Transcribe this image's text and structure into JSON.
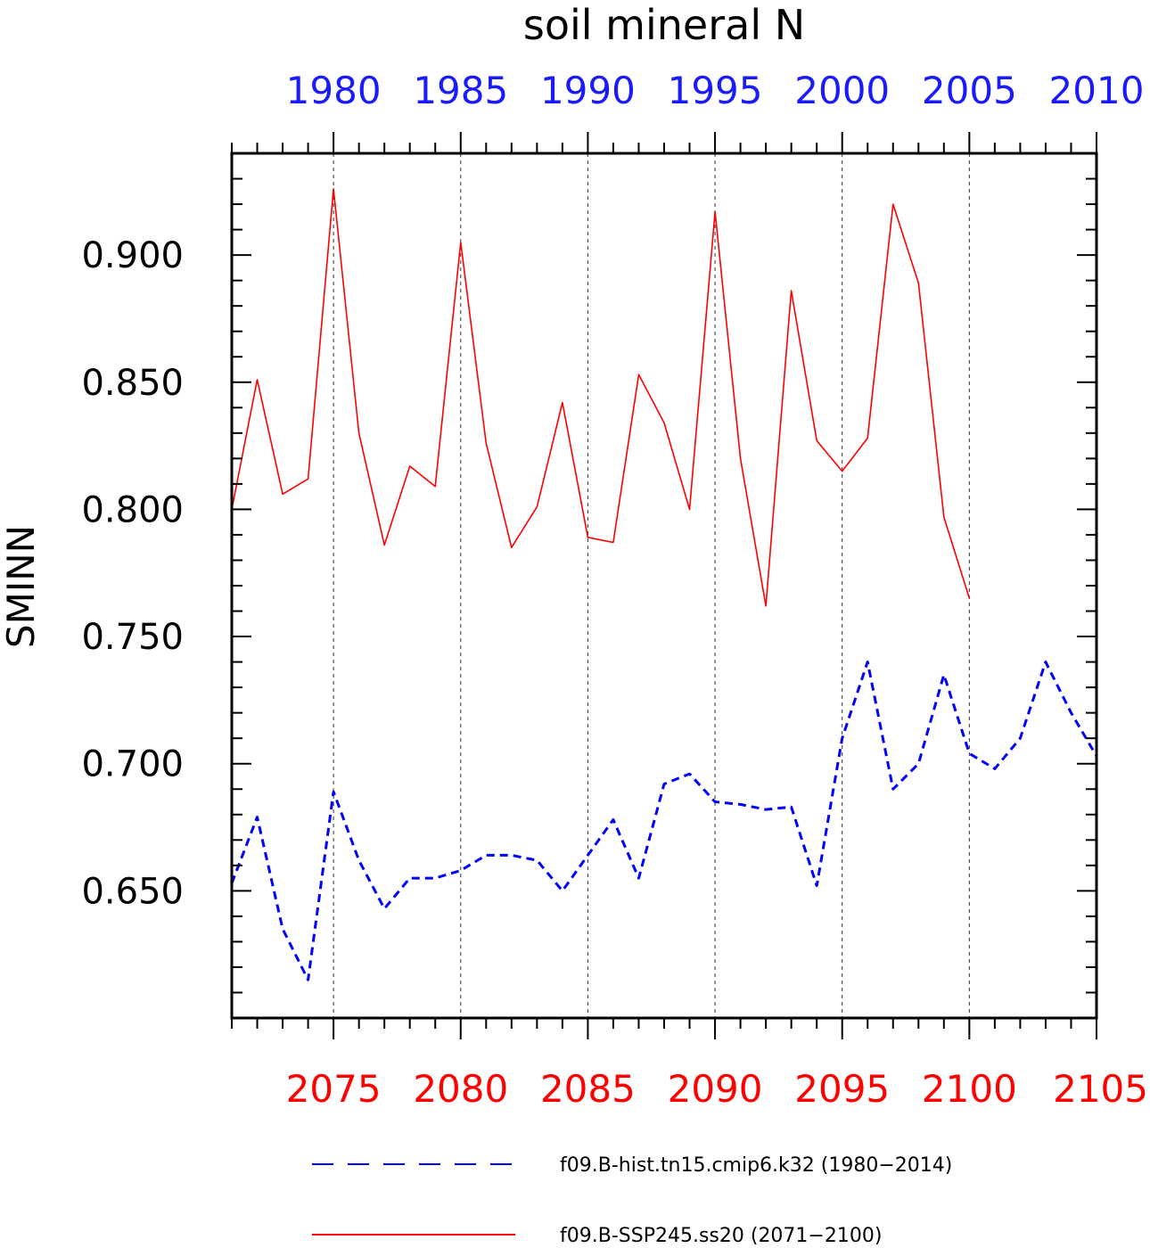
{
  "chart_data": {
    "type": "line",
    "title": "soil mineral N",
    "ylabel": "SMINN",
    "ylim": [
      0.6,
      0.94
    ],
    "y_ticks": [
      "0.650",
      "0.700",
      "0.750",
      "0.800",
      "0.850",
      "0.900"
    ],
    "y_tick_values": [
      0.65,
      0.7,
      0.75,
      0.8,
      0.85,
      0.9
    ],
    "top_axis": {
      "color": "#1a1aff",
      "range": [
        1976,
        2010
      ],
      "tick_labels": [
        "1980",
        "1985",
        "1990",
        "1995",
        "2000",
        "2005",
        "2010"
      ],
      "tick_values": [
        1980,
        1985,
        1990,
        1995,
        2000,
        2005,
        2010
      ]
    },
    "bottom_axis": {
      "color": "#ff0000",
      "range": [
        2071,
        2105
      ],
      "tick_labels": [
        "2075",
        "2080",
        "2085",
        "2090",
        "2095",
        "2100",
        "2105"
      ],
      "tick_values": [
        2075,
        2080,
        2085,
        2090,
        2095,
        2100,
        2105
      ]
    },
    "grid": "dashed vertical lines at labeled years",
    "series": [
      {
        "name": "f09.B-hist.tn15.cmip6.k32 (1980−2014)",
        "color": "#0000ff",
        "style": "dashed",
        "axis": "top",
        "x": [
          1976,
          1977,
          1978,
          1979,
          1980,
          1981,
          1982,
          1983,
          1984,
          1985,
          1986,
          1987,
          1988,
          1989,
          1990,
          1991,
          1992,
          1993,
          1994,
          1995,
          1996,
          1997,
          1998,
          1999,
          2000,
          2001,
          2002,
          2003,
          2004,
          2005,
          2006,
          2007,
          2008,
          2009,
          2010
        ],
        "values": [
          0.653,
          0.679,
          0.635,
          0.615,
          0.689,
          0.662,
          0.643,
          0.655,
          0.655,
          0.658,
          0.664,
          0.664,
          0.662,
          0.65,
          0.664,
          0.678,
          0.655,
          0.692,
          0.696,
          0.685,
          0.684,
          0.682,
          0.683,
          0.652,
          0.71,
          0.74,
          0.69,
          0.7,
          0.735,
          0.704,
          0.698,
          0.71,
          0.74,
          0.72,
          0.703
        ]
      },
      {
        "name": "f09.B-SSP245.ss20 (2071−2100)",
        "color": "#ff0000",
        "style": "solid",
        "axis": "bottom",
        "x": [
          2071,
          2072,
          2073,
          2074,
          2075,
          2076,
          2077,
          2078,
          2079,
          2080,
          2081,
          2082,
          2083,
          2084,
          2085,
          2086,
          2087,
          2088,
          2089,
          2090,
          2091,
          2092,
          2093,
          2094,
          2095,
          2096,
          2097,
          2098,
          2099,
          2100
        ],
        "values": [
          0.8,
          0.851,
          0.806,
          0.812,
          0.926,
          0.83,
          0.786,
          0.817,
          0.809,
          0.905,
          0.826,
          0.785,
          0.801,
          0.842,
          0.789,
          0.787,
          0.853,
          0.834,
          0.8,
          0.917,
          0.82,
          0.762,
          0.886,
          0.827,
          0.815,
          0.828,
          0.92,
          0.889,
          0.797,
          0.765
        ]
      }
    ]
  }
}
